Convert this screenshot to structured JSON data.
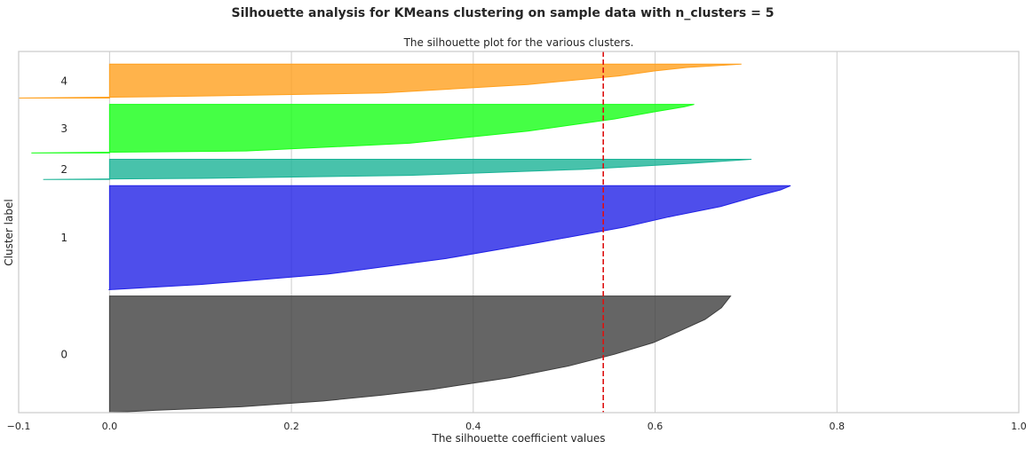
{
  "chart_data": {
    "type": "area",
    "suptitle": "Silhouette analysis for KMeans clustering on sample data with n_clusters = 5",
    "title": "The silhouette plot for the various clusters.",
    "xlabel": "The silhouette coefficient values",
    "ylabel": "Cluster label",
    "xlim": [
      -0.1,
      1.0
    ],
    "xticks": [
      -0.1,
      0.0,
      0.2,
      0.4,
      0.6,
      0.8,
      1.0
    ],
    "xtick_labels": [
      "−0.1",
      "0.0",
      "0.2",
      "0.4",
      "0.6",
      "0.8",
      "1.0"
    ],
    "grid": true,
    "average_silhouette_score": 0.543,
    "average_line_color": "#dd1111",
    "clusters": [
      {
        "label": "0",
        "color": "#3f3f3f",
        "sample_count": 185,
        "min": 0.0,
        "max": 0.683,
        "profile": [
          [
            0.0,
            0.0
          ],
          [
            0.02,
            0.05
          ],
          [
            0.05,
            0.145
          ],
          [
            0.1,
            0.235
          ],
          [
            0.15,
            0.3
          ],
          [
            0.2,
            0.355
          ],
          [
            0.3,
            0.44
          ],
          [
            0.4,
            0.505
          ],
          [
            0.5,
            0.555
          ],
          [
            0.6,
            0.598
          ],
          [
            0.7,
            0.627
          ],
          [
            0.8,
            0.655
          ],
          [
            0.9,
            0.673
          ],
          [
            0.97,
            0.68
          ],
          [
            1.0,
            0.683
          ]
        ]
      },
      {
        "label": "1",
        "color": "#2222e6",
        "sample_count": 165,
        "min": -0.001,
        "max": 0.749,
        "profile": [
          [
            0.0,
            -0.001
          ],
          [
            0.05,
            0.1
          ],
          [
            0.15,
            0.24
          ],
          [
            0.3,
            0.37
          ],
          [
            0.45,
            0.47
          ],
          [
            0.6,
            0.565
          ],
          [
            0.7,
            0.615
          ],
          [
            0.8,
            0.672
          ],
          [
            0.9,
            0.712
          ],
          [
            0.96,
            0.738
          ],
          [
            1.0,
            0.749
          ]
        ]
      },
      {
        "label": "2",
        "color": "#1ab396",
        "sample_count": 32,
        "min": -0.073,
        "max": 0.706,
        "profile": [
          [
            0.0,
            -0.073
          ],
          [
            0.05,
            0.1
          ],
          [
            0.2,
            0.33
          ],
          [
            0.5,
            0.52
          ],
          [
            0.8,
            0.64
          ],
          [
            0.95,
            0.69
          ],
          [
            1.0,
            0.706
          ]
        ]
      },
      {
        "label": "3",
        "color": "#17ff17",
        "sample_count": 77,
        "min": -0.086,
        "max": 0.643,
        "profile": [
          [
            0.0,
            -0.086
          ],
          [
            0.04,
            0.15
          ],
          [
            0.2,
            0.33
          ],
          [
            0.45,
            0.46
          ],
          [
            0.7,
            0.555
          ],
          [
            0.85,
            0.6
          ],
          [
            0.95,
            0.632
          ],
          [
            1.0,
            0.643
          ]
        ]
      },
      {
        "label": "4",
        "color": "#ffa01e",
        "sample_count": 54,
        "min": -0.1,
        "max": 0.695,
        "profile": [
          [
            0.0,
            -0.1
          ],
          [
            0.04,
            0.05
          ],
          [
            0.15,
            0.3
          ],
          [
            0.4,
            0.46
          ],
          [
            0.65,
            0.56
          ],
          [
            0.8,
            0.6
          ],
          [
            0.9,
            0.635
          ],
          [
            1.0,
            0.695
          ]
        ]
      }
    ]
  }
}
